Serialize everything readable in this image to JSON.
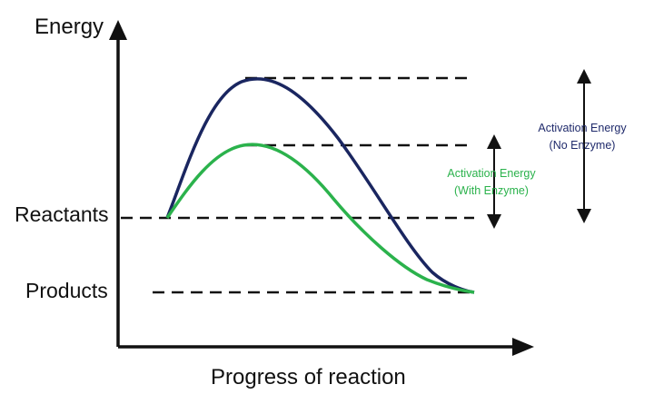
{
  "axes": {
    "y_label": "Energy",
    "x_label": "Progress of reaction"
  },
  "levels": {
    "reactants": "Reactants",
    "products": "Products"
  },
  "annotations": {
    "no_enzyme": {
      "line1": "Activation Energy",
      "line2": "(No Enzyme)",
      "color": "#1f2a6b"
    },
    "with_enzyme": {
      "line1": "Activation Energy",
      "line2": "(With Enzyme)",
      "color": "#2bb24c"
    }
  },
  "curves": {
    "no_enzyme_color": "#1a2660",
    "with_enzyme_color": "#2bb24c"
  },
  "colors": {
    "axis": "#111111",
    "dash": "#111111",
    "arrow": "#111111"
  }
}
